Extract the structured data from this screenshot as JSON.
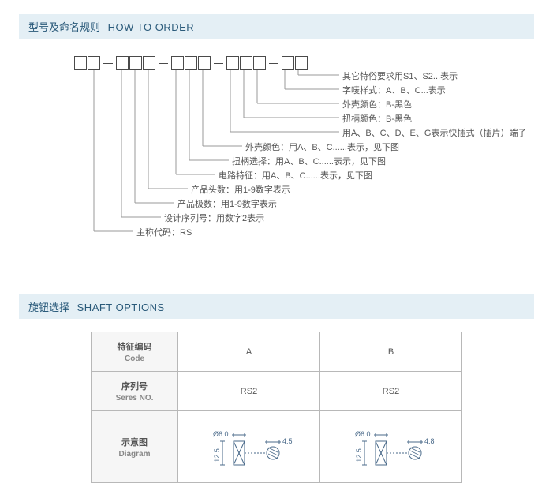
{
  "sections": {
    "howToOrder": {
      "zh": "型号及命名规则",
      "en": "HOW TO ORDER"
    },
    "shaftOptions": {
      "zh": "旋钮选择",
      "en": "SHAFT OPTIONS"
    }
  },
  "order": {
    "groups": [
      2,
      3,
      3,
      3,
      2
    ],
    "labels": [
      "其它特俗要求用S1、S2...表示",
      "字唛样式：A、B、C...表示",
      "外壳颜色：B-黑色",
      "扭柄颜色：B-黑色",
      "用A、B、C、D、E、G表示快插式（插片）端子",
      "外壳颜色：用A、B、C......表示，见下图",
      "扭柄选择：用A、B、C......表示，见下图",
      "电路特征：用A、B、C......表示，见下图",
      "产品头数：用1-9数字表示",
      "产品极数：用1-9数字表示",
      "设计序列号：用数字2表示",
      "主称代码：RS"
    ],
    "lineColor": "#999999",
    "boxBorder": "#4a4a4a",
    "labelColor": "#555555"
  },
  "shaft": {
    "headers": {
      "code": {
        "zh": "特征编码",
        "en": "Code"
      },
      "series": {
        "zh": "序列号",
        "en": "Seres NO."
      },
      "diagram": {
        "zh": "示意图",
        "en": "Diagram"
      }
    },
    "cols": [
      {
        "code": "A",
        "series": "RS2",
        "d1": "Ø6.0",
        "d2": "4.5",
        "h": "12.5"
      },
      {
        "code": "B",
        "series": "RS2",
        "d1": "Ø6.0",
        "d2": "4.8",
        "h": "12.5"
      }
    ],
    "drawColor": "#4a6a8a",
    "hatchColor": "#4a6a8a",
    "dimTextColor": "#4a6a8a"
  }
}
